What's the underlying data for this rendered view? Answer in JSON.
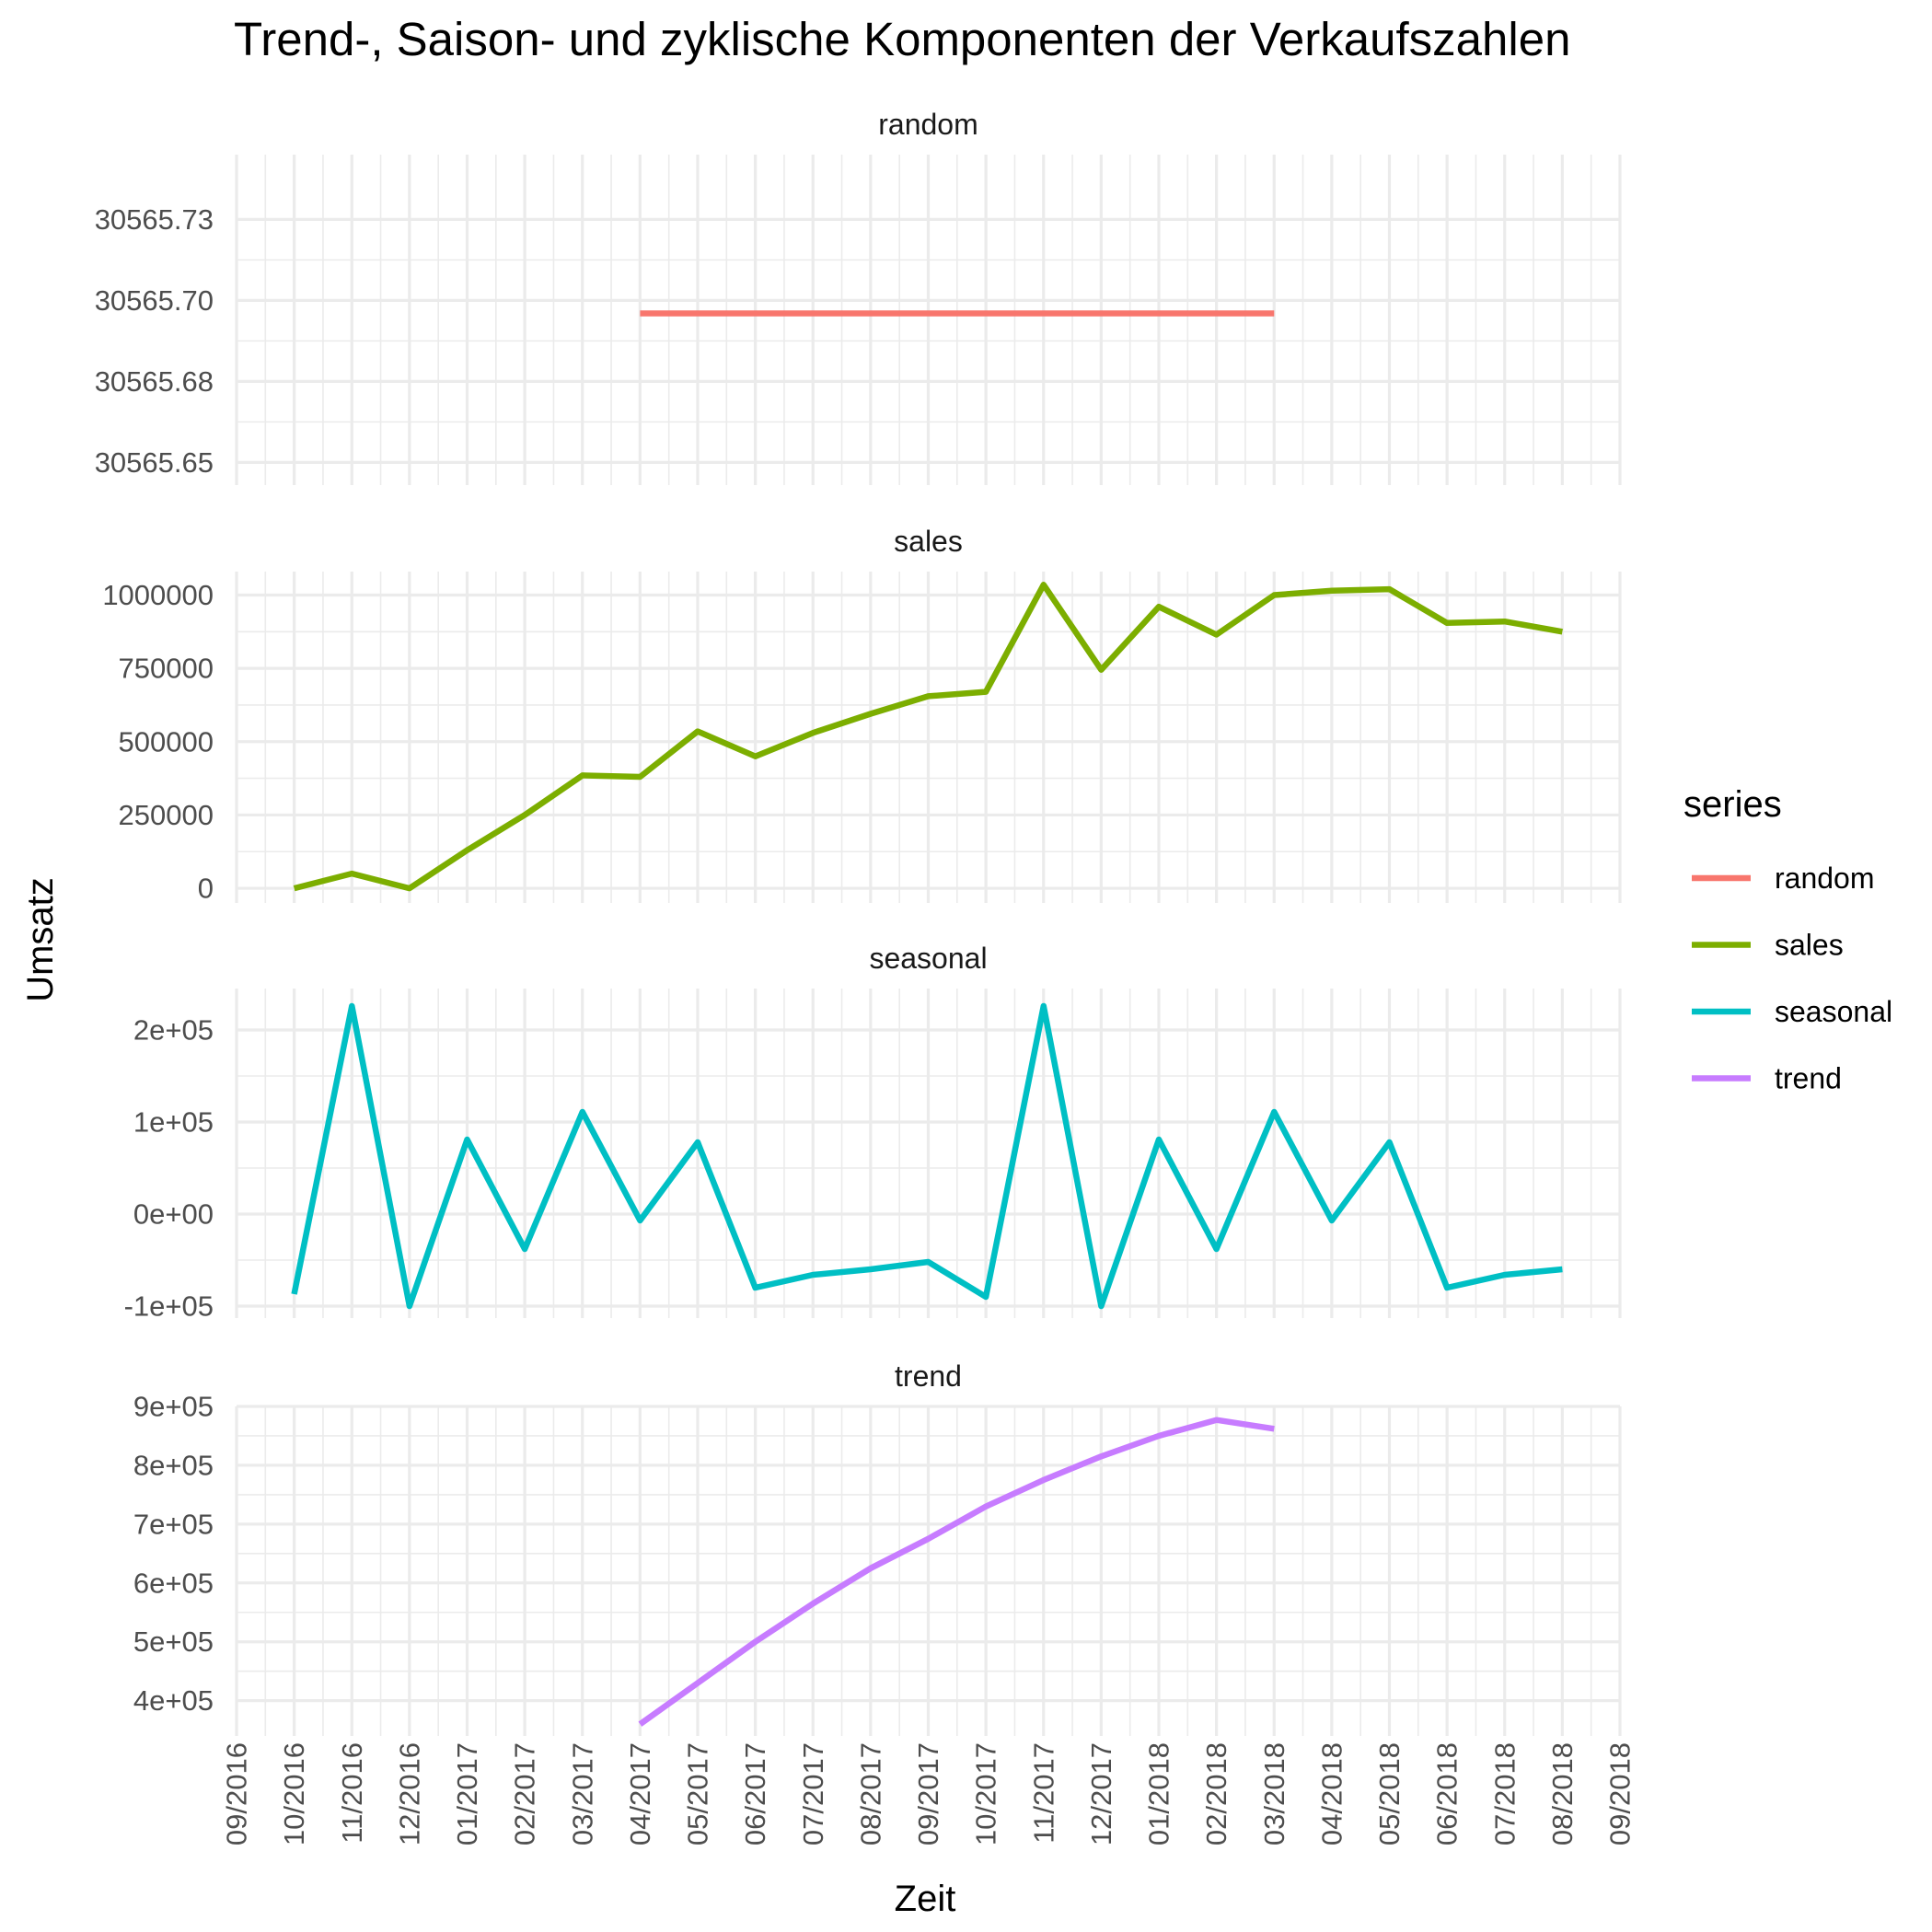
{
  "chart_data": {
    "type": "line",
    "title": "Trend-, Saison- und zyklische Komponenten der Verkaufszahlen",
    "xlabel": "Zeit",
    "ylabel": "Umsatz",
    "legend": {
      "title": "series",
      "position": "right",
      "entries": [
        {
          "name": "random",
          "color": "#F8766D"
        },
        {
          "name": "sales",
          "color": "#7CAE00"
        },
        {
          "name": "seasonal",
          "color": "#00BFC4"
        },
        {
          "name": "trend",
          "color": "#C77CFF"
        }
      ]
    },
    "x_tick_labels": [
      "09/2016",
      "10/2016",
      "11/2016",
      "12/2016",
      "01/2017",
      "02/2017",
      "03/2017",
      "04/2017",
      "05/2017",
      "06/2017",
      "07/2017",
      "08/2017",
      "09/2017",
      "10/2017",
      "11/2017",
      "12/2017",
      "01/2018",
      "02/2018",
      "03/2018",
      "04/2018",
      "05/2018",
      "06/2018",
      "07/2018",
      "08/2018",
      "09/2018"
    ],
    "x_range": [
      "09/2016",
      "09/2018"
    ],
    "facets": [
      {
        "name": "random",
        "color": "#F8766D",
        "ylim": [
          30565.643,
          30565.745
        ],
        "y_ticks": [
          30565.65,
          30565.675,
          30565.7,
          30565.725
        ],
        "y_tick_labels": [
          "30565.65",
          "30565.68",
          "30565.70",
          "30565.73"
        ],
        "x": [
          "04/2017",
          "05/2017",
          "06/2017",
          "07/2017",
          "08/2017",
          "09/2017",
          "10/2017",
          "11/2017",
          "12/2017",
          "01/2018",
          "02/2018",
          "03/2018"
        ],
        "values": [
          30565.696,
          30565.696,
          30565.696,
          30565.696,
          30565.696,
          30565.696,
          30565.696,
          30565.696,
          30565.696,
          30565.696,
          30565.696,
          30565.696
        ]
      },
      {
        "name": "sales",
        "color": "#7CAE00",
        "ylim": [
          -50000,
          1080000
        ],
        "y_ticks": [
          0,
          250000,
          500000,
          750000,
          1000000
        ],
        "y_tick_labels": [
          "0",
          "250000",
          "500000",
          "750000",
          "1000000"
        ],
        "x": [
          "10/2016",
          "11/2016",
          "12/2016",
          "01/2017",
          "02/2017",
          "03/2017",
          "04/2017",
          "05/2017",
          "06/2017",
          "07/2017",
          "08/2017",
          "09/2017",
          "10/2017",
          "11/2017",
          "12/2017",
          "01/2018",
          "02/2018",
          "03/2018",
          "04/2018",
          "05/2018",
          "06/2018",
          "07/2018",
          "08/2018"
        ],
        "values": [
          0,
          50000,
          0,
          130000,
          250000,
          385000,
          380000,
          535000,
          450000,
          530000,
          595000,
          655000,
          670000,
          1035000,
          745000,
          960000,
          865000,
          1000000,
          1015000,
          1020000,
          905000,
          910000,
          875000
        ]
      },
      {
        "name": "seasonal",
        "color": "#00BFC4",
        "ylim": [
          -113000,
          245000
        ],
        "y_ticks": [
          -100000,
          0,
          100000,
          200000
        ],
        "y_tick_labels": [
          "-1e+05",
          "0e+00",
          "1e+05",
          "2e+05"
        ],
        "x": [
          "10/2016",
          "11/2016",
          "12/2016",
          "01/2017",
          "02/2017",
          "03/2017",
          "04/2017",
          "05/2017",
          "06/2017",
          "07/2017",
          "08/2017",
          "09/2017",
          "10/2017",
          "11/2017",
          "12/2017",
          "01/2018",
          "02/2018",
          "03/2018",
          "04/2018",
          "05/2018",
          "06/2018",
          "07/2018",
          "08/2018"
        ],
        "values": [
          -87000,
          226000,
          -100000,
          81000,
          -38000,
          111000,
          -7000,
          78000,
          -80000,
          -66000,
          -60000,
          -52000,
          -90000,
          226000,
          -100000,
          81000,
          -38000,
          111000,
          -7000,
          78000,
          -80000,
          -66000,
          -60000
        ]
      },
      {
        "name": "trend",
        "color": "#C77CFF",
        "ylim": [
          340000,
          900000
        ],
        "y_ticks": [
          400000,
          500000,
          600000,
          700000,
          800000,
          900000
        ],
        "y_tick_labels": [
          "4e+05",
          "5e+05",
          "6e+05",
          "7e+05",
          "8e+05",
          "9e+05"
        ],
        "x": [
          "04/2017",
          "05/2017",
          "06/2017",
          "07/2017",
          "08/2017",
          "09/2017",
          "10/2017",
          "11/2017",
          "12/2017",
          "01/2018",
          "02/2018",
          "03/2018"
        ],
        "values": [
          360000,
          430000,
          500000,
          565000,
          625000,
          675000,
          730000,
          775000,
          815000,
          850000,
          877000,
          862000
        ]
      }
    ]
  }
}
